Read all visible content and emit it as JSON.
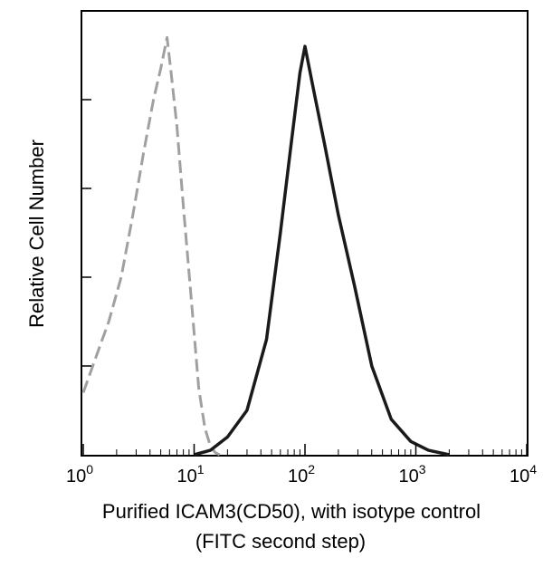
{
  "chart_data": {
    "type": "line",
    "title": "",
    "xlabel": "Purified ICAM3(CD50), with isotype control",
    "xlabel_line2": "(FITC second step)",
    "ylabel": "Relative Cell Number",
    "x_scale": "log",
    "xlim": [
      1,
      10000
    ],
    "ylim": [
      0,
      1
    ],
    "x_ticks": [
      {
        "value": 1,
        "base": "10",
        "exp": "0"
      },
      {
        "value": 10,
        "base": "10",
        "exp": "1"
      },
      {
        "value": 100,
        "base": "10",
        "exp": "2"
      },
      {
        "value": 1000,
        "base": "10",
        "exp": "3"
      },
      {
        "value": 10000,
        "base": "10",
        "exp": "4"
      }
    ],
    "y_ticks": [
      0.2,
      0.4,
      0.6,
      0.8,
      1.0
    ],
    "grid": false,
    "legend": "none",
    "series": [
      {
        "color": "#a0a0a0",
        "style": "dashed",
        "x": [
          1.0,
          1.3,
          1.7,
          2.2,
          2.8,
          3.5,
          4.3,
          5.0,
          5.7,
          6.2,
          7.0,
          8.0,
          9.5,
          11.0,
          12.5,
          14.0,
          15.5,
          17.0
        ],
        "y": [
          0.14,
          0.22,
          0.3,
          0.4,
          0.54,
          0.68,
          0.8,
          0.87,
          0.94,
          0.86,
          0.74,
          0.56,
          0.34,
          0.15,
          0.06,
          0.02,
          0.005,
          0.0
        ]
      },
      {
        "color": "#1a1a1a",
        "style": "solid",
        "x": [
          10.0,
          14.0,
          20.0,
          30.0,
          45.0,
          60.0,
          75.0,
          90.0,
          100.0,
          120.0,
          150.0,
          200.0,
          280.0,
          400.0,
          600.0,
          900.0,
          1300.0,
          2000.0
        ],
        "y": [
          0.0,
          0.01,
          0.04,
          0.1,
          0.26,
          0.5,
          0.7,
          0.86,
          0.92,
          0.82,
          0.7,
          0.54,
          0.38,
          0.2,
          0.08,
          0.03,
          0.01,
          0.0
        ]
      }
    ]
  }
}
